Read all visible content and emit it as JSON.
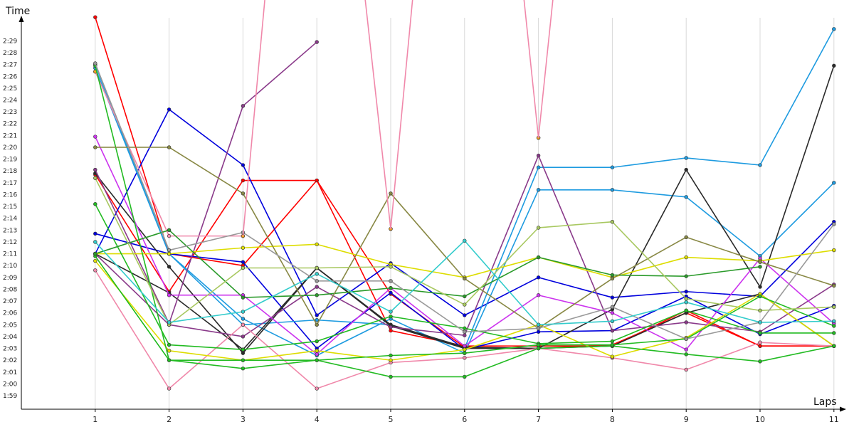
{
  "chart_data": {
    "type": "line",
    "title": "",
    "xlabel": "Laps",
    "ylabel": "Time",
    "x": [
      1,
      2,
      3,
      4,
      5,
      6,
      7,
      8,
      9,
      10,
      11
    ],
    "xlim": [
      0,
      11
    ],
    "ylim_seconds": [
      7130,
      8980
    ],
    "y_ticks": [
      "1:59",
      "2:00",
      "2:01",
      "2:02",
      "2:03",
      "2:04",
      "2:05",
      "2:06",
      "2:07",
      "2:08",
      "2:09",
      "2:10",
      "2:11",
      "2:12",
      "2:13",
      "2:14",
      "2:15",
      "2:16",
      "2:17",
      "2:18",
      "2:19",
      "2:20",
      "2:21",
      "2:22",
      "2:23",
      "2:24",
      "2:25",
      "2:26",
      "2:27",
      "2:28",
      "2:29"
    ],
    "grid": "vertical",
    "legend": "none",
    "series": [
      {
        "color": "#ff0000",
        "values": [
          "2:31.0",
          "2:11.0",
          "2:10.0",
          "2:17.2",
          "2:04.5",
          "2:03.2",
          "2:03.2",
          "2:03.2",
          "2:06.2",
          "2:03.2",
          "2:03.2"
        ]
      },
      {
        "color": "#ff0000",
        "values": [
          "2:17.7",
          "2:07.8",
          "2:17.2",
          "2:17.2",
          "2:07.6",
          "2:03.1",
          "2:03.0",
          "2:03.3",
          "2:06.0",
          "2:03.2",
          "2:03.2"
        ]
      },
      {
        "color": "#0000dd",
        "values": [
          "2:11.0",
          "2:23.2",
          "2:18.5",
          "2:05.8",
          "2:10.2",
          "2:05.8",
          "2:09.0",
          "2:07.3",
          "2:07.8",
          "2:07.4",
          "2:13.7"
        ]
      },
      {
        "color": "#0000dd",
        "values": [
          "2:12.7",
          "2:11.0",
          "2:10.3",
          "2:03.0",
          "2:07.7",
          "2:02.9",
          "2:04.4",
          "2:04.5",
          "2:07.4",
          "2:04.2",
          "2:06.6"
        ]
      },
      {
        "color": "#1e9be0",
        "values": [
          "2:26.7",
          "2:11.0",
          "2:05.0",
          "2:05.4",
          "2:05.0",
          "2:03.0",
          "2:18.3",
          "2:18.3",
          "2:19.1",
          "2:18.5",
          "2:30.0"
        ]
      },
      {
        "color": "#1e9be0",
        "values": [
          "2:27.0",
          "2:11.0",
          "2:05.5",
          "2:02.4",
          "2:05.5",
          "2:02.6",
          "2:16.4",
          "2:16.4",
          "2:15.8",
          "2:10.8",
          "2:17.0"
        ]
      },
      {
        "color": "#2a2a2a",
        "values": [
          "2:17.8",
          "2:09.9",
          "2:02.6",
          "2:09.8",
          "2:04.9",
          "2:03.0",
          "2:03.0",
          "2:06.3",
          "2:18.1",
          "2:08.2",
          "2:26.9"
        ]
      },
      {
        "color": "#2a2a2a",
        "values": [
          "2:11.0",
          "2:07.7",
          "2:02.9",
          "2:09.8",
          "2:05.0",
          "2:03.1",
          "2:03.0",
          "2:03.2",
          "2:06.0",
          "2:07.6",
          "2:03.2"
        ]
      },
      {
        "color": "#8a3a8a",
        "values": [
          "2:18.1",
          "2:05.1",
          "2:23.5",
          "2:28.9",
          "",
          "",
          "",
          "",
          "",
          "",
          ""
        ]
      },
      {
        "color": "#8a3a8a",
        "values": [
          "2:11.0",
          "2:05.0",
          "2:04.0",
          "2:08.2",
          "2:04.8",
          "2:04.1",
          "2:19.3",
          "2:04.5",
          "2:05.2",
          "2:04.4",
          "2:08.4"
        ]
      },
      {
        "color": "#cc33ee",
        "values": [
          "2:20.9",
          "2:07.5",
          "2:07.5",
          "2:02.5",
          "2:08.1",
          "2:03.2",
          "2:07.5",
          "2:06.0",
          "2:02.9",
          "2:10.6",
          "2:05.1"
        ]
      },
      {
        "color": "#f088aa",
        "values": [
          "2:09.6",
          "1:59.6",
          "2:05.0",
          "1:59.6",
          "2:01.8",
          "2:02.2",
          "2:03.0",
          "2:02.2",
          "2:01.2",
          "2:03.5",
          "2:03.2"
        ]
      },
      {
        "color": "#f088aa",
        "values": [
          "2:26.4",
          "2:12.5",
          "2:12.5",
          "",
          "",
          "",
          "",
          "",
          "",
          "",
          ""
        ]
      },
      {
        "color": "#f088aa",
        "values": [
          "",
          "",
          "",
          "",
          "2:13.1",
          "",
          "2:20.8",
          "",
          "",
          "",
          ""
        ]
      },
      {
        "color": "#f0a020",
        "values": [
          "2:26.4",
          "",
          "2:12.5",
          "",
          "2:13.1",
          "",
          "2:20.8",
          "",
          "",
          "",
          ""
        ]
      },
      {
        "color": "#dddd00",
        "values": [
          "2:10.4",
          "2:02.8",
          "2:02.0",
          "2:02.8",
          "2:02.0",
          "2:02.9",
          "2:05.0",
          "2:02.3",
          "2:03.9",
          "2:07.6",
          "2:03.2"
        ]
      },
      {
        "color": "#dddd00",
        "values": [
          "2:11.0",
          "2:11.0",
          "2:11.5",
          "2:11.8",
          "2:10.1",
          "2:09.0",
          "2:10.7",
          "2:09.0",
          "2:10.7",
          "2:10.4",
          "2:11.3"
        ]
      },
      {
        "color": "#22bb22",
        "values": [
          "2:15.2",
          "2:03.3",
          "2:02.9",
          "2:03.6",
          "2:05.7",
          "2:04.7",
          "2:03.4",
          "2:03.6",
          "2:06.2",
          "2:04.3",
          "2:04.3"
        ]
      },
      {
        "color": "#22bb22",
        "values": [
          "2:10.8",
          "2:02.0",
          "2:01.3",
          "2:02.0",
          "2:00.6",
          "2:00.6",
          "2:03.0",
          "2:03.2",
          "2:02.5",
          "2:01.9",
          "2:03.2"
        ]
      },
      {
        "color": "#22bb22",
        "values": [
          "2:26.9",
          "2:02.0",
          "2:02.0",
          "2:02.0",
          "2:02.4",
          "2:02.6",
          "2:03.3",
          "2:03.3",
          "2:03.8",
          "2:07.4",
          "2:04.9"
        ]
      },
      {
        "color": "#2a9a2a",
        "values": [
          "2:11.0",
          "2:13.0",
          "2:07.3",
          "2:07.5",
          "2:08.1",
          "2:07.4",
          "2:10.7",
          "2:09.2",
          "2:09.1",
          "2:09.9",
          ""
        ]
      },
      {
        "color": "#888844",
        "values": [
          "2:20.0",
          "2:20.0",
          "2:16.1",
          "2:05.0",
          "2:16.1",
          "2:08.9",
          "2:04.7",
          "2:08.9",
          "2:12.4",
          "2:10.3",
          "2:08.3"
        ]
      },
      {
        "color": "#a8c860",
        "values": [
          "2:17.4",
          "2:05.0",
          "2:09.8",
          "2:09.8",
          "2:09.9",
          "2:06.7",
          "2:13.2",
          "2:13.7",
          "2:07.2",
          "2:06.2",
          "2:06.5"
        ]
      },
      {
        "color": "#999999",
        "values": [
          "2:27.1",
          "2:11.3",
          "2:12.8",
          "2:08.7",
          "2:08.7",
          "2:04.4",
          "2:04.7",
          "2:06.5",
          "2:03.8",
          "2:05.2",
          "2:13.5"
        ]
      },
      {
        "color": "#33cccc",
        "values": [
          "2:12.0",
          "2:05.2",
          "2:06.1",
          "2:09.3",
          "2:06.1",
          "2:12.1",
          "2:05.0",
          "2:05.3",
          "2:06.9",
          "2:05.2",
          "2:05.3"
        ]
      }
    ],
    "spikes": [
      {
        "color": "#f088aa",
        "points": [
          [
            3,
            "2:12.5"
          ],
          [
            3.3,
            "off-top"
          ]
        ]
      },
      {
        "color": "#f088aa",
        "points": [
          [
            4.65,
            "off-top"
          ],
          [
            5,
            "2:13.1"
          ],
          [
            5.3,
            "off-top"
          ]
        ]
      },
      {
        "color": "#f088aa",
        "points": [
          [
            6.8,
            "off-top"
          ],
          [
            7,
            "2:20.8"
          ],
          [
            7.2,
            "off-top"
          ]
        ]
      }
    ]
  }
}
